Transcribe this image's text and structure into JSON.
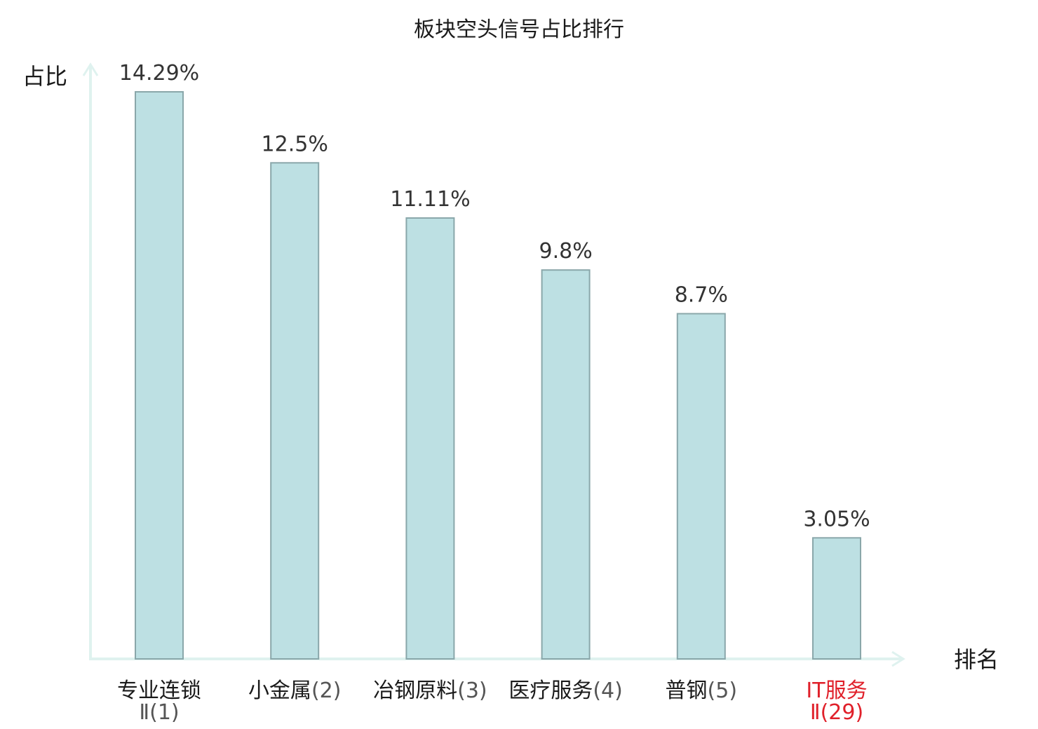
{
  "chart_data": {
    "type": "bar",
    "title": "板块空头信号占比排行",
    "ylabel": "占比",
    "xlabel": "排名",
    "categories": [
      {
        "name": "专业连锁",
        "rank_line2": "Ⅱ(1)",
        "highlight": false
      },
      {
        "name": "小金属",
        "rank": "(2)",
        "highlight": false
      },
      {
        "name": "冶钢原料",
        "rank": "(3)",
        "highlight": false
      },
      {
        "name": "医疗服务",
        "rank": "(4)",
        "highlight": false
      },
      {
        "name": "普钢",
        "rank": "(5)",
        "highlight": false
      },
      {
        "name": "IT服务",
        "rank_line2": "Ⅱ(29)",
        "highlight": true
      }
    ],
    "values": [
      14.29,
      12.5,
      11.11,
      9.8,
      8.7,
      3.05
    ],
    "value_labels": [
      "14.29%",
      "12.5%",
      "11.11%",
      "9.8%",
      "8.7%",
      "3.05%"
    ],
    "ylim": [
      0,
      14.29
    ],
    "grid": false,
    "colors": {
      "bar_fill": "#bde0e3",
      "bar_stroke": "#8aa7aa",
      "axis": "#dff2ef",
      "highlight": "#e0202a"
    }
  }
}
